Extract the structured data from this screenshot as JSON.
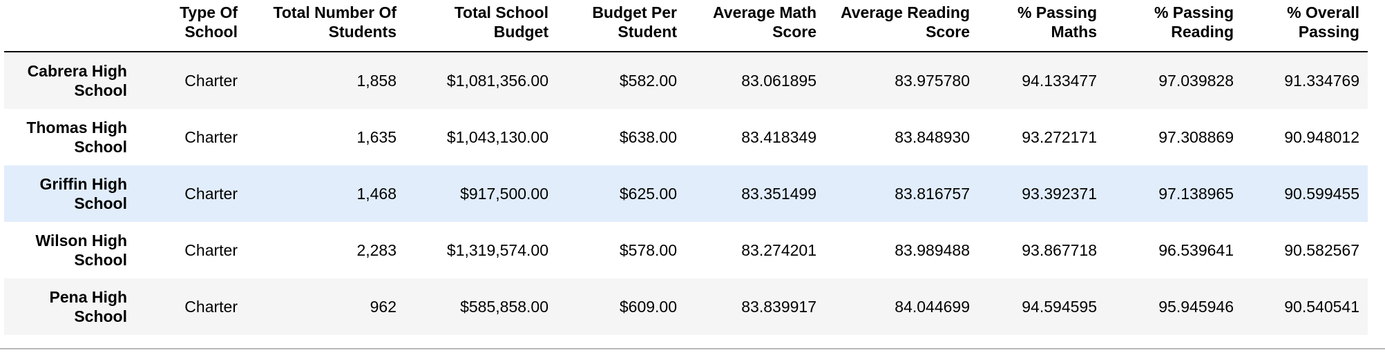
{
  "table": {
    "columns": [
      "",
      "Type Of School",
      "Total Number Of Students",
      "Total School Budget",
      "Budget Per Student",
      "Average Math Score",
      "Average Reading Score",
      "% Passing Maths",
      "% Passing Reading",
      "% Overall Passing"
    ],
    "rows": [
      {
        "school": "Cabrera High School",
        "type": "Charter",
        "students": "1,858",
        "budget": "$1,081,356.00",
        "per_student": "$582.00",
        "math": "83.061895",
        "reading": "83.975780",
        "pass_math": "94.133477",
        "pass_reading": "97.039828",
        "overall": "91.334769"
      },
      {
        "school": "Thomas High School",
        "type": "Charter",
        "students": "1,635",
        "budget": "$1,043,130.00",
        "per_student": "$638.00",
        "math": "83.418349",
        "reading": "83.848930",
        "pass_math": "93.272171",
        "pass_reading": "97.308869",
        "overall": "90.948012"
      },
      {
        "school": "Griffin High School",
        "type": "Charter",
        "students": "1,468",
        "budget": "$917,500.00",
        "per_student": "$625.00",
        "math": "83.351499",
        "reading": "83.816757",
        "pass_math": "93.392371",
        "pass_reading": "97.138965",
        "overall": "90.599455"
      },
      {
        "school": "Wilson High School",
        "type": "Charter",
        "students": "2,283",
        "budget": "$1,319,574.00",
        "per_student": "$578.00",
        "math": "83.274201",
        "reading": "83.989488",
        "pass_math": "93.867718",
        "pass_reading": "96.539641",
        "overall": "90.582567"
      },
      {
        "school": "Pena High School",
        "type": "Charter",
        "students": "962",
        "budget": "$585,858.00",
        "per_student": "$609.00",
        "math": "83.839917",
        "reading": "84.044699",
        "pass_math": "94.594595",
        "pass_reading": "95.945946",
        "overall": "90.540541"
      }
    ]
  }
}
